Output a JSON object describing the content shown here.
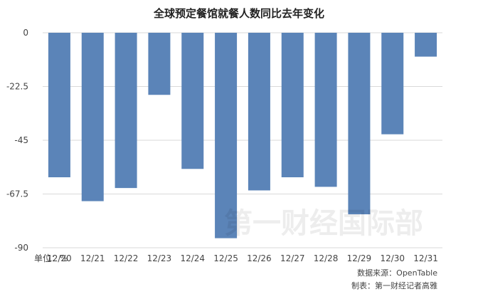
{
  "chart_data": {
    "type": "bar",
    "title": "全球预定餐馆就餐人数同比去年变化",
    "unit_label": "单位：%",
    "categories": [
      "12/20",
      "12/21",
      "12/22",
      "12/23",
      "12/24",
      "12/25",
      "12/26",
      "12/27",
      "12/28",
      "12/29",
      "12/30",
      "12/31"
    ],
    "values": [
      -60.5,
      -70.5,
      -65,
      -26,
      -57,
      -86,
      -66,
      -60.5,
      -64.5,
      -76,
      -42.5,
      -10
    ],
    "ylim": [
      -90,
      0
    ],
    "yticks": [
      0,
      -22.5,
      -45,
      -67.5,
      -90
    ],
    "ytick_labels": [
      "0",
      "-22.5",
      "-45",
      "-67.5",
      "-90"
    ],
    "grid": true,
    "bar_color": "#5b84b8",
    "grid_color": "#d9d9d9"
  },
  "footer": {
    "source": "数据来源：OpenTable",
    "author": "制表：第一财经记者高雅"
  },
  "watermark": "第一财经国际部"
}
